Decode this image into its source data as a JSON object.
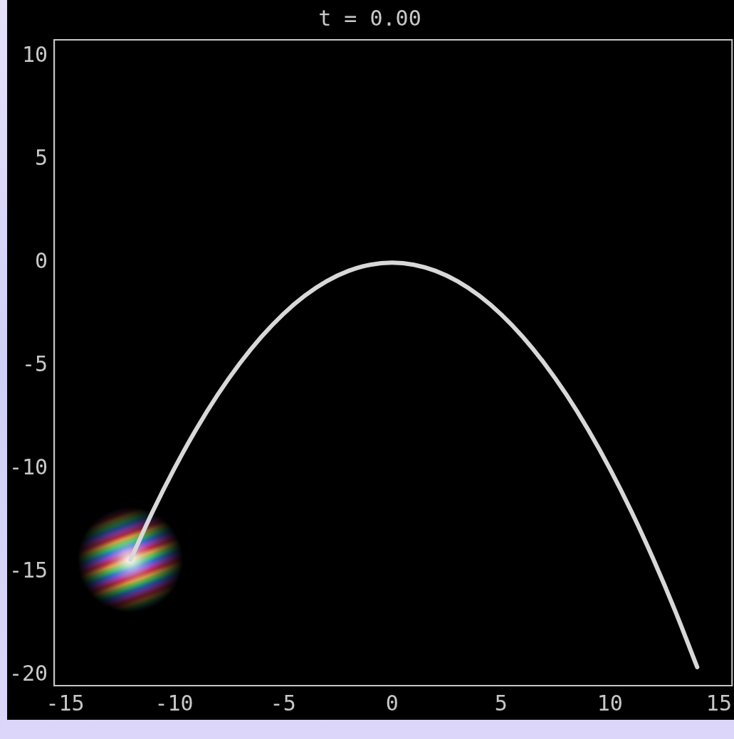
{
  "chart_data": {
    "type": "line",
    "title": "t = 0.00",
    "x": [
      -12,
      -11,
      -10,
      -9,
      -8,
      -7,
      -6,
      -5,
      -4,
      -3,
      -2,
      -1,
      0,
      1,
      2,
      3,
      4,
      5,
      6,
      7,
      8,
      9,
      10,
      11,
      12,
      13,
      14
    ],
    "series": [
      {
        "color": "#d8d8d8",
        "values": [
          -14.4,
          -12.1,
          -10,
          -8.1,
          -6.4,
          -4.9,
          -3.6,
          -2.5,
          -1.6,
          -0.9,
          -0.4,
          -0.1,
          0,
          -0.1,
          -0.4,
          -0.9,
          -1.6,
          -2.5,
          -3.6,
          -4.9,
          -6.4,
          -8.1,
          -10,
          -12.1,
          -14.4,
          -16.9,
          -19.6
        ]
      }
    ],
    "xlim": [
      -15.5,
      15.6
    ],
    "ylim": [
      -20.5,
      10.8
    ],
    "xticks": [
      -15,
      -10,
      -5,
      0,
      5,
      10,
      15
    ],
    "yticks": [
      -20,
      -15,
      -10,
      -5,
      0,
      5,
      10
    ],
    "grid": false,
    "legend": false,
    "marker": "none",
    "line_style": "solid"
  }
}
